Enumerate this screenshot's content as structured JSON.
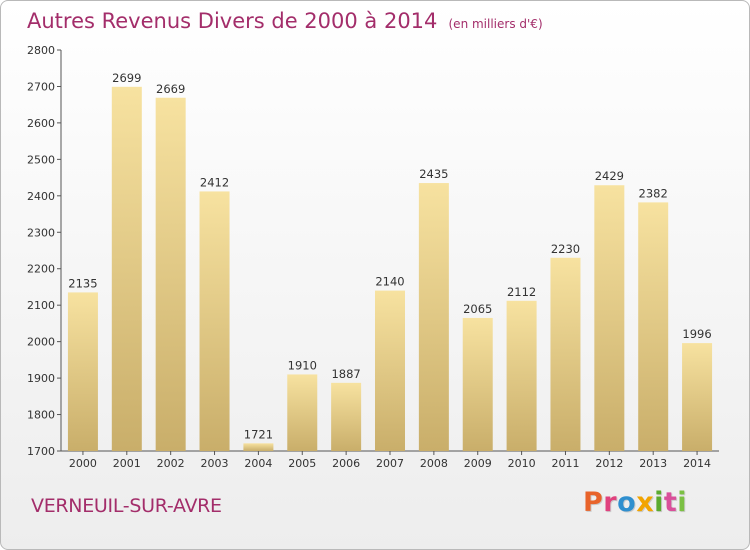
{
  "header": {
    "title": "Autres Revenus Divers de 2000 à 2014",
    "unit": "(en milliers d'€)"
  },
  "footer": {
    "commune": "VERNEUIL-SUR-AVRE",
    "brand": "Proxiti"
  },
  "colors": {
    "title": "#a32d6a",
    "bar_top": "#f7e2a0",
    "bar_bottom": "#c9ae6a",
    "brand_letters": [
      "#e8632a",
      "#e0427e",
      "#2f8fcf",
      "#f2a400",
      "#5aab2f",
      "#d94f9a",
      "#7bc043"
    ]
  },
  "chart_data": {
    "type": "bar",
    "title": "Autres Revenus Divers de 2000 à 2014",
    "subtitle": "(en milliers d'€)",
    "categories": [
      "2000",
      "2001",
      "2002",
      "2003",
      "2004",
      "2005",
      "2006",
      "2007",
      "2008",
      "2009",
      "2010",
      "2011",
      "2012",
      "2013",
      "2014"
    ],
    "values": [
      2135,
      2699,
      2669,
      2412,
      1721,
      1910,
      1887,
      2140,
      2435,
      2065,
      2112,
      2230,
      2429,
      2382,
      1996
    ],
    "ylim": [
      1700,
      2800
    ],
    "yticks": [
      1700,
      1800,
      1900,
      2000,
      2100,
      2200,
      2300,
      2400,
      2500,
      2600,
      2700,
      2800
    ],
    "grid": false,
    "xlabel": "",
    "ylabel": ""
  }
}
